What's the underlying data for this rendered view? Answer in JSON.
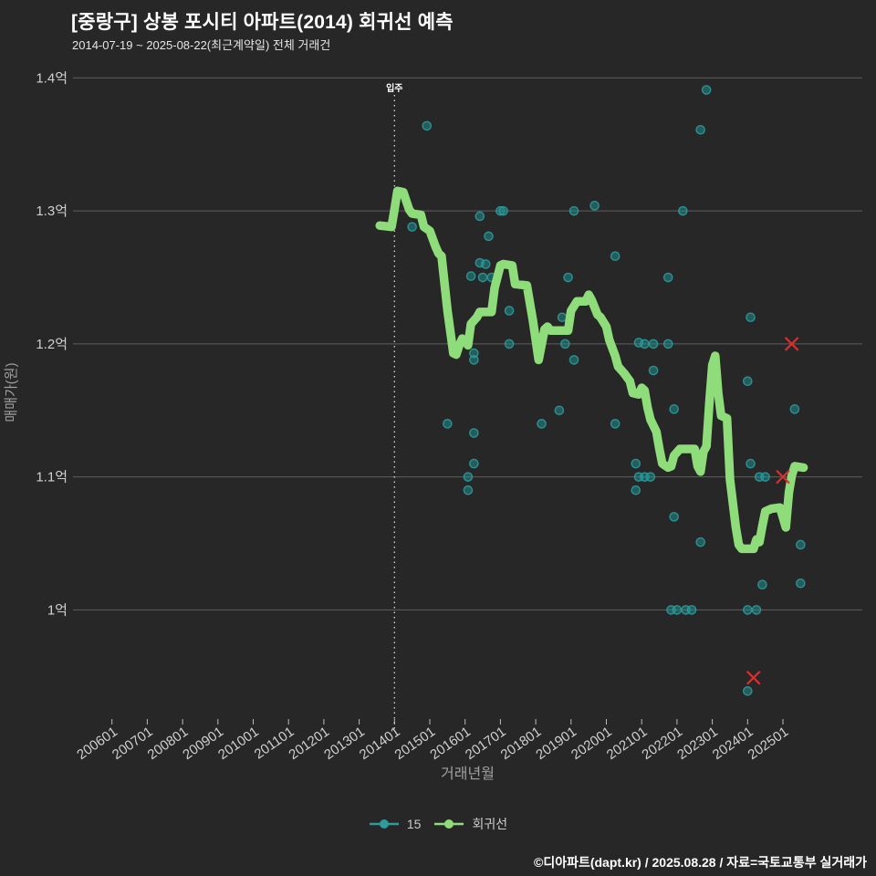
{
  "header": {
    "title": "[중랑구] 상봉 포시티 아파트(2014) 회귀선 예측",
    "subtitle": "2014-07-19 ~ 2025-08-22(최근계약일) 전체 거래건"
  },
  "footer": {
    "credit": "©디아파트(dapt.kr) / 2025.08.28 / 자료=국토교통부 실거래가"
  },
  "legend": {
    "items": [
      {
        "label": "15",
        "color": "#2e9c9c",
        "type": "scatter"
      },
      {
        "label": "회귀선",
        "color": "#8fdc7a",
        "type": "line"
      }
    ]
  },
  "annotation": {
    "label": "입주",
    "x": "2014-01"
  },
  "colors": {
    "background": "#272727",
    "grid": "#8b8b8b",
    "tick_text": "#d0d0d0",
    "axis_title": "#a0a0a0",
    "scatter_fill": "rgba(30,150,150,0.5)",
    "scatter_stroke": "#2f9e9e",
    "line": "#8fdc7a",
    "cancel_x": "#d93030",
    "annotation_line": "#f0f0f0"
  },
  "chart_data": {
    "type": "scatter",
    "title": "[중랑구] 상봉 포시티 아파트(2014) 회귀선 예측",
    "xlabel": "거래년월",
    "ylabel": "매매가(원)",
    "x_ticks": [
      "200601",
      "200701",
      "200801",
      "200901",
      "201001",
      "201101",
      "201201",
      "201301",
      "201401",
      "201501",
      "201601",
      "201701",
      "201801",
      "201901",
      "202001",
      "202101",
      "202201",
      "202301",
      "202401",
      "202501"
    ],
    "y_ticks": [
      {
        "label": "1억",
        "value": 1.0
      },
      {
        "label": "1.1억",
        "value": 1.1
      },
      {
        "label": "1.2억",
        "value": 1.2
      },
      {
        "label": "1.3억",
        "value": 1.3
      },
      {
        "label": "1.4억",
        "value": 1.4
      }
    ],
    "ylim": [
      0.92,
      1.41
    ],
    "unit": "억",
    "series": [
      {
        "name": "15",
        "type": "scatter",
        "points": [
          [
            "2014-07",
            1.288
          ],
          [
            "2014-12",
            1.364
          ],
          [
            "2015-07",
            1.14
          ],
          [
            "2016-02",
            1.1
          ],
          [
            "2016-02",
            1.09
          ],
          [
            "2016-03",
            1.251
          ],
          [
            "2016-04",
            1.193
          ],
          [
            "2016-04",
            1.188
          ],
          [
            "2016-04",
            1.133
          ],
          [
            "2016-04",
            1.11
          ],
          [
            "2016-06",
            1.296
          ],
          [
            "2016-06",
            1.261
          ],
          [
            "2016-07",
            1.25
          ],
          [
            "2016-08",
            1.26
          ],
          [
            "2016-09",
            1.281
          ],
          [
            "2016-10",
            1.25
          ],
          [
            "2017-01",
            1.3
          ],
          [
            "2017-02",
            1.3
          ],
          [
            "2017-04",
            1.225
          ],
          [
            "2017-04",
            1.2
          ],
          [
            "2018-03",
            1.14
          ],
          [
            "2018-09",
            1.15
          ],
          [
            "2018-10",
            1.22
          ],
          [
            "2018-11",
            1.2
          ],
          [
            "2018-12",
            1.25
          ],
          [
            "2019-02",
            1.3
          ],
          [
            "2019-02",
            1.188
          ],
          [
            "2019-09",
            1.304
          ],
          [
            "2020-04",
            1.266
          ],
          [
            "2020-04",
            1.14
          ],
          [
            "2020-11",
            1.11
          ],
          [
            "2020-11",
            1.09
          ],
          [
            "2020-12",
            1.201
          ],
          [
            "2020-12",
            1.1
          ],
          [
            "2021-02",
            1.2
          ],
          [
            "2021-02",
            1.1
          ],
          [
            "2021-04",
            1.1
          ],
          [
            "2021-05",
            1.2
          ],
          [
            "2021-05",
            1.18
          ],
          [
            "2021-10",
            1.25
          ],
          [
            "2021-10",
            1.2
          ],
          [
            "2021-11",
            1.0
          ],
          [
            "2021-12",
            1.151
          ],
          [
            "2021-12",
            1.07
          ],
          [
            "2022-01",
            1.0
          ],
          [
            "2022-03",
            1.3
          ],
          [
            "2022-04",
            1.0
          ],
          [
            "2022-06",
            1.0
          ],
          [
            "2022-09",
            1.361
          ],
          [
            "2022-09",
            1.051
          ],
          [
            "2022-11",
            1.391
          ],
          [
            "2024-01",
            1.172
          ],
          [
            "2024-01",
            1.0
          ],
          [
            "2024-01",
            0.939
          ],
          [
            "2024-02",
            1.22
          ],
          [
            "2024-02",
            1.11
          ],
          [
            "2024-04",
            1.0
          ],
          [
            "2024-05",
            1.1
          ],
          [
            "2024-06",
            1.019
          ],
          [
            "2024-07",
            1.1
          ],
          [
            "2025-05",
            1.151
          ],
          [
            "2025-07",
            1.049
          ],
          [
            "2025-07",
            1.02
          ]
        ]
      },
      {
        "name": "회귀선",
        "type": "line",
        "points": [
          [
            "2013-08",
            1.289
          ],
          [
            "2013-12",
            1.288
          ],
          [
            "2014-01",
            1.301
          ],
          [
            "2014-02",
            1.315
          ],
          [
            "2014-04",
            1.314
          ],
          [
            "2014-06",
            1.301
          ],
          [
            "2014-07",
            1.298
          ],
          [
            "2014-10",
            1.297
          ],
          [
            "2014-11",
            1.288
          ],
          [
            "2015-01",
            1.285
          ],
          [
            "2015-02",
            1.279
          ],
          [
            "2015-03",
            1.273
          ],
          [
            "2015-04",
            1.268
          ],
          [
            "2015-05",
            1.266
          ],
          [
            "2015-07",
            1.225
          ],
          [
            "2015-09",
            1.193
          ],
          [
            "2015-10",
            1.192
          ],
          [
            "2015-11",
            1.199
          ],
          [
            "2015-12",
            1.204
          ],
          [
            "2016-01",
            1.202
          ],
          [
            "2016-02",
            1.199
          ],
          [
            "2016-03",
            1.215
          ],
          [
            "2016-05",
            1.22
          ],
          [
            "2016-06",
            1.224
          ],
          [
            "2016-10",
            1.224
          ],
          [
            "2016-11",
            1.242
          ],
          [
            "2017-01",
            1.259
          ],
          [
            "2017-02",
            1.26
          ],
          [
            "2017-05",
            1.259
          ],
          [
            "2017-06",
            1.245
          ],
          [
            "2017-10",
            1.244
          ],
          [
            "2017-12",
            1.218
          ],
          [
            "2018-02",
            1.188
          ],
          [
            "2018-04",
            1.211
          ],
          [
            "2018-05",
            1.213
          ],
          [
            "2018-06",
            1.21
          ],
          [
            "2018-12",
            1.21
          ],
          [
            "2019-01",
            1.225
          ],
          [
            "2019-03",
            1.232
          ],
          [
            "2019-06",
            1.232
          ],
          [
            "2019-07",
            1.237
          ],
          [
            "2019-08",
            1.233
          ],
          [
            "2019-10",
            1.222
          ],
          [
            "2019-11",
            1.22
          ],
          [
            "2020-01",
            1.213
          ],
          [
            "2020-02",
            1.203
          ],
          [
            "2020-04",
            1.191
          ],
          [
            "2020-05",
            1.183
          ],
          [
            "2020-07",
            1.178
          ],
          [
            "2020-09",
            1.172
          ],
          [
            "2020-10",
            1.163
          ],
          [
            "2020-12",
            1.162
          ],
          [
            "2021-01",
            1.167
          ],
          [
            "2021-02",
            1.165
          ],
          [
            "2021-03",
            1.152
          ],
          [
            "2021-04",
            1.143
          ],
          [
            "2021-06",
            1.134
          ],
          [
            "2021-07",
            1.121
          ],
          [
            "2021-08",
            1.11
          ],
          [
            "2021-10",
            1.107
          ],
          [
            "2021-11",
            1.108
          ],
          [
            "2021-12",
            1.116
          ],
          [
            "2022-02",
            1.121
          ],
          [
            "2022-07",
            1.121
          ],
          [
            "2022-08",
            1.108
          ],
          [
            "2022-09",
            1.104
          ],
          [
            "2022-10",
            1.119
          ],
          [
            "2022-11",
            1.123
          ],
          [
            "2022-12",
            1.156
          ],
          [
            "2023-01",
            1.184
          ],
          [
            "2023-02",
            1.191
          ],
          [
            "2023-03",
            1.163
          ],
          [
            "2023-04",
            1.146
          ],
          [
            "2023-06",
            1.144
          ],
          [
            "2023-07",
            1.098
          ],
          [
            "2023-08",
            1.08
          ],
          [
            "2023-09",
            1.062
          ],
          [
            "2023-10",
            1.049
          ],
          [
            "2023-11",
            1.046
          ],
          [
            "2024-03",
            1.046
          ],
          [
            "2024-04",
            1.053
          ],
          [
            "2024-05",
            1.051
          ],
          [
            "2024-06",
            1.063
          ],
          [
            "2024-07",
            1.074
          ],
          [
            "2024-09",
            1.076
          ],
          [
            "2024-12",
            1.077
          ],
          [
            "2025-02",
            1.062
          ],
          [
            "2025-03",
            1.088
          ],
          [
            "2025-04",
            1.101
          ],
          [
            "2025-05",
            1.108
          ],
          [
            "2025-08",
            1.107
          ]
        ]
      },
      {
        "name": "cancelled",
        "type": "x-marker",
        "points": [
          [
            "2025-04",
            1.2
          ],
          [
            "2025-01",
            1.1
          ],
          [
            "2024-03",
            0.949
          ]
        ]
      }
    ]
  }
}
